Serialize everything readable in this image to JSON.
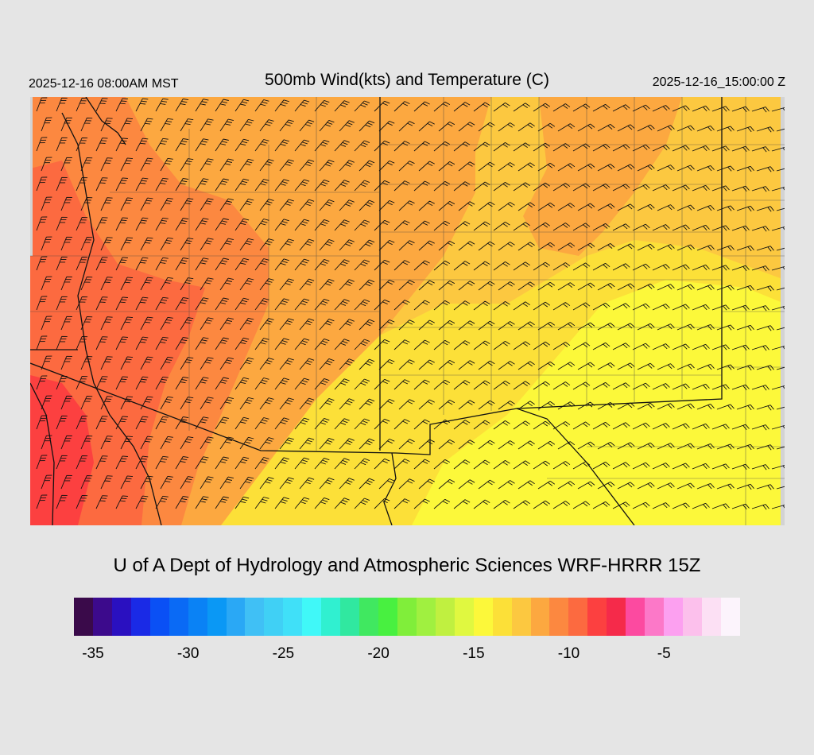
{
  "header": {
    "left_time": "2025-12-16 08:00AM MST",
    "title": "500mb Wind(kts) and Temperature (C)",
    "right_time": "2025-12-16_15:00:00 Z"
  },
  "footer": {
    "credit": "U of A Dept of Hydrology and Atmospheric Sciences WRF-HRRR 15Z"
  },
  "colorbar": {
    "colors": [
      "#3a0a4a",
      "#3c0a8c",
      "#2a10c0",
      "#1a2ae6",
      "#0a50f5",
      "#0a6af5",
      "#0a82f5",
      "#0a98f5",
      "#2aa8f5",
      "#40c0f5",
      "#40d0f5",
      "#40e0f8",
      "#40f8f8",
      "#30f0d0",
      "#30e8a0",
      "#40e860",
      "#48f040",
      "#80ee3a",
      "#a0f040",
      "#c0f040",
      "#e0f840",
      "#fcf83a",
      "#fce038",
      "#fcc840",
      "#fca840",
      "#fc8840",
      "#fc6a40",
      "#fc4040",
      "#f52a4a",
      "#fc4aa0",
      "#fc78c8",
      "#fca0f0",
      "#fcc0ec",
      "#fce0f4",
      "#fcf4fc"
    ],
    "tick_labels": [
      "-35",
      "-30",
      "-25",
      "-20",
      "-15",
      "-10",
      "-5"
    ],
    "tick_values": [
      -35,
      -30,
      -25,
      -20,
      -15,
      -10,
      -5
    ],
    "vmin": -36,
    "vmax": -1
  },
  "map": {
    "variable_shading": "temperature",
    "colors": {
      "background": "#fcc840",
      "dark_orange": "#fca840",
      "orange_red": "#fc8840",
      "red": "#fc6a40",
      "deep_red": "#fc4040",
      "yellow": "#fce038",
      "bright_yellow": "#fcf83a",
      "no_data": "#d3d3d3",
      "lines": "#111111"
    }
  }
}
